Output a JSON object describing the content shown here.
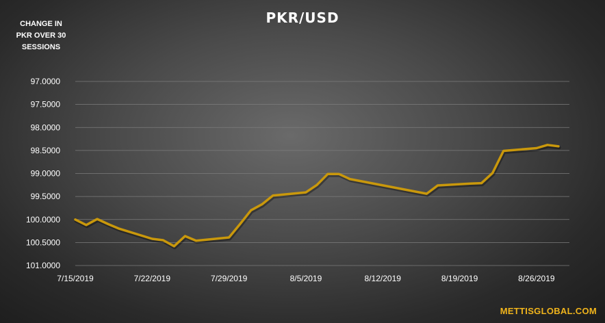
{
  "chart_data": {
    "type": "line",
    "title": "PKR/USD",
    "subtitle_lines": [
      "CHANGE IN",
      "PKR OVER 30",
      "SESSIONS"
    ],
    "y_axis": {
      "inverted": true,
      "ylim": [
        97.0,
        101.0
      ],
      "tick_labels": [
        "97.0000",
        "97.5000",
        "98.0000",
        "98.5000",
        "99.0000",
        "99.5000",
        "100.0000",
        "100.5000",
        "101.0000"
      ],
      "tick_values": [
        97.0,
        97.5,
        98.0,
        98.5,
        99.0,
        99.5,
        100.0,
        100.5,
        101.0
      ]
    },
    "x_axis": {
      "range": [
        "2019-07-15",
        "2019-08-29"
      ],
      "tick_labels": [
        "7/15/2019",
        "7/22/2019",
        "7/29/2019",
        "8/5/2019",
        "8/12/2019",
        "8/19/2019",
        "8/26/2019"
      ],
      "tick_dates": [
        "2019-07-15",
        "2019-07-22",
        "2019-07-29",
        "2019-08-05",
        "2019-08-12",
        "2019-08-19",
        "2019-08-26"
      ]
    },
    "grid": true,
    "line_color": "#c9980c",
    "series": [
      {
        "x": [
          "2019-07-15",
          "2019-07-16",
          "2019-07-17",
          "2019-07-18",
          "2019-07-19",
          "2019-07-22",
          "2019-07-23",
          "2019-07-24",
          "2019-07-25",
          "2019-07-26",
          "2019-07-29",
          "2019-07-30",
          "2019-07-31",
          "2019-08-01",
          "2019-08-02",
          "2019-08-05",
          "2019-08-06",
          "2019-08-07",
          "2019-08-08",
          "2019-08-09",
          "2019-08-16",
          "2019-08-17",
          "2019-08-20",
          "2019-08-21",
          "2019-08-22",
          "2019-08-23",
          "2019-08-26",
          "2019-08-27",
          "2019-08-28"
        ],
        "y": [
          100.0,
          100.12,
          99.99,
          100.1,
          100.2,
          100.42,
          100.45,
          100.58,
          100.36,
          100.46,
          100.39,
          100.1,
          99.8,
          99.67,
          99.48,
          99.41,
          99.25,
          99.01,
          99.01,
          99.12,
          99.44,
          99.26,
          99.22,
          99.21,
          98.99,
          98.51,
          98.45,
          98.38,
          98.41
        ]
      }
    ],
    "brand": "METTISGLOBAL.COM"
  }
}
